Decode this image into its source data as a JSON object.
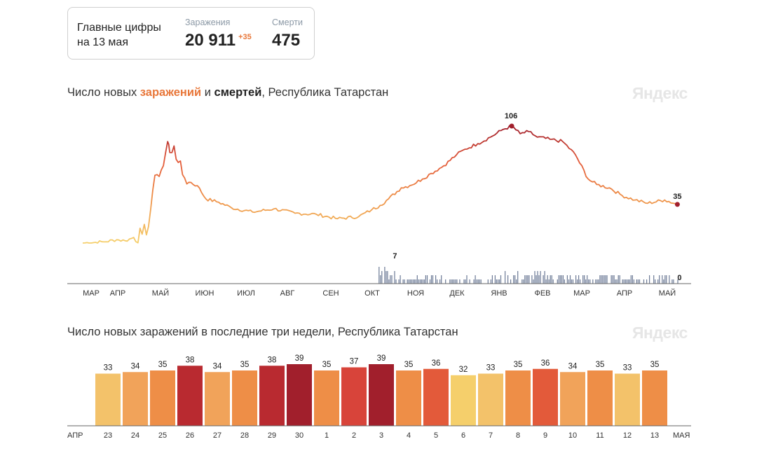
{
  "summary": {
    "label_line1": "Главные цифры",
    "label_line2": "на 13 мая",
    "infections_caption": "Заражения",
    "infections_value": "20 911",
    "infections_delta": "+35",
    "deaths_caption": "Смерти",
    "deaths_value": "475"
  },
  "brand": "Яндекс",
  "colors": {
    "low": "#f5cf6b",
    "mid": "#ee8e47",
    "high": "#e35a3a",
    "peak": "#a11f2c",
    "deaths_bar": "#6c7a96",
    "weekend_label": "#e0533a"
  },
  "chart_data": [
    {
      "type": "line",
      "title_parts": [
        "Число новых ",
        "заражений",
        " и ",
        "смертей",
        ", Республика Татарстан"
      ],
      "x_tick_labels": [
        "МАР",
        "АПР",
        "МАЙ",
        "ИЮН",
        "ИЮЛ",
        "АВГ",
        "СЕН",
        "ОКТ",
        "НОЯ",
        "ДЕК",
        "ЯНВ",
        "ФЕВ",
        "МАР",
        "АПР",
        "МАЙ"
      ],
      "series": [
        {
          "kind": "infections",
          "x_months": [
            0.0,
            0.5,
            0.8,
            1.0,
            1.2,
            1.4,
            1.55,
            1.65,
            1.75,
            1.9,
            2.0,
            2.05,
            2.15,
            2.25,
            2.35,
            2.5,
            2.7,
            2.9,
            3.2,
            3.5,
            4.0,
            4.5,
            5.0,
            5.5,
            6.0,
            6.5,
            6.8,
            7.0,
            7.2,
            7.5,
            7.7,
            8.0,
            8.2,
            8.5,
            8.8,
            9.0,
            9.3,
            9.6,
            9.9,
            10.1,
            10.3,
            10.5,
            10.7,
            11.0,
            11.3,
            11.6,
            11.9,
            12.1,
            12.4,
            12.7,
            13.0,
            13.3,
            13.7,
            14.0
          ],
          "values": [
            0,
            1,
            3,
            2,
            5,
            8,
            15,
            48,
            62,
            70,
            92,
            82,
            88,
            73,
            62,
            55,
            52,
            40,
            37,
            32,
            28,
            31,
            27,
            26,
            22,
            24,
            30,
            34,
            40,
            50,
            52,
            58,
            63,
            70,
            80,
            85,
            90,
            96,
            103,
            106,
            99,
            101,
            96,
            94,
            92,
            80,
            58,
            53,
            50,
            43,
            39,
            36,
            39,
            35
          ],
          "peak_label": "106",
          "last_label": "35"
        },
        {
          "kind": "deaths",
          "max_label": "7",
          "last_label": "0"
        }
      ]
    },
    {
      "type": "bar",
      "title": "Число новых заражений в последние три недели, Республика Татарстан",
      "left_month_label": "АПР",
      "right_month_label": "МАЯ",
      "categories": [
        "23",
        "24",
        "25",
        "26",
        "27",
        "28",
        "29",
        "30",
        "1",
        "2",
        "3",
        "4",
        "5",
        "6",
        "7",
        "8",
        "9",
        "10",
        "11",
        "12",
        "13"
      ],
      "values": [
        33,
        34,
        35,
        38,
        34,
        35,
        38,
        39,
        35,
        37,
        39,
        35,
        36,
        32,
        33,
        35,
        36,
        34,
        35,
        33,
        35
      ],
      "red_categories": [
        1,
        2,
        8,
        9,
        15,
        16
      ],
      "ylim": [
        0,
        39
      ]
    }
  ]
}
